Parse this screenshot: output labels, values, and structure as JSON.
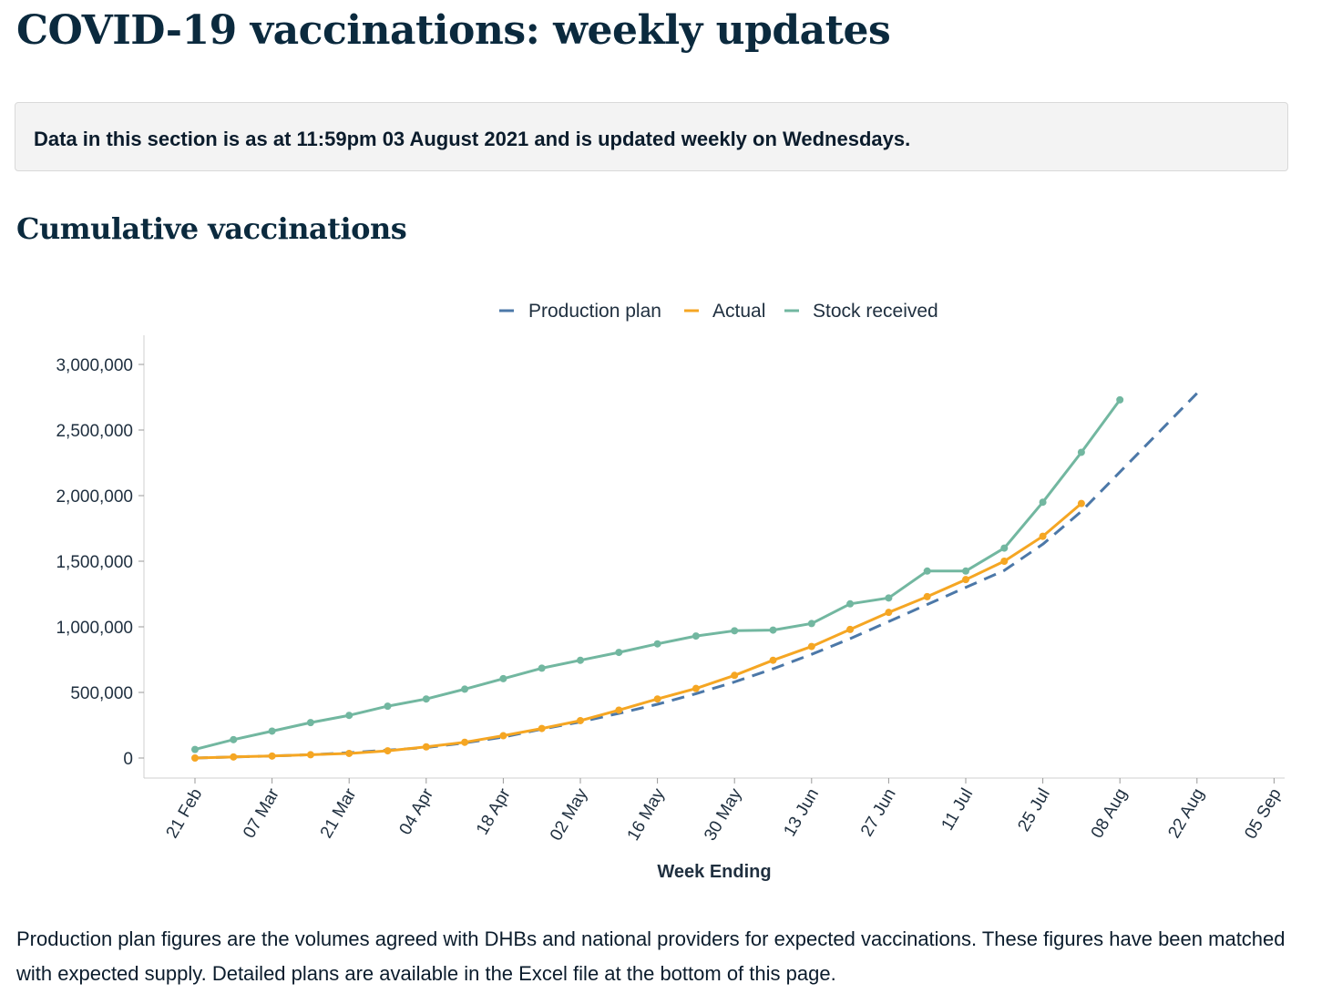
{
  "page": {
    "title": "COVID-19 vaccinations: weekly updates",
    "notice": "Data in this section is as at 11:59pm 03 August 2021 and is updated weekly on Wednesdays.",
    "section_title": "Cumulative vaccinations",
    "footnote": "Production plan figures are the volumes agreed with DHBs and national providers for expected vaccinations. These figures have been matched with expected supply. Detailed plans are available in the Excel file at the bottom of this page."
  },
  "chart_data": {
    "type": "line",
    "title": "Cumulative vaccinations",
    "xlabel": "Week Ending",
    "ylabel": "",
    "ylim": [
      0,
      3100000
    ],
    "yticks": [
      0,
      500000,
      1000000,
      1500000,
      2000000,
      2500000,
      3000000
    ],
    "ytick_labels": [
      "0",
      "500,000",
      "1,000,000",
      "1,500,000",
      "2,000,000",
      "2,500,000",
      "3,000,000"
    ],
    "xticks": [
      "21 Feb",
      "07 Mar",
      "21 Mar",
      "04 Apr",
      "18 Apr",
      "02 May",
      "16 May",
      "30 May",
      "13 Jun",
      "27 Jun",
      "11 Jul",
      "25 Jul",
      "08 Aug",
      "22 Aug",
      "05 Sep"
    ],
    "legend_position": "top",
    "series": [
      {
        "name": "Production plan",
        "color": "#4c78a8",
        "dashed": true,
        "markers": false,
        "x": [
          0,
          1,
          2,
          3,
          4,
          5,
          6,
          7,
          8,
          9,
          10,
          11,
          12,
          13,
          14,
          15,
          16,
          17,
          18,
          19,
          20,
          21,
          22,
          23,
          24,
          25,
          26
        ],
        "values": [
          0,
          8000,
          15000,
          25000,
          40000,
          60000,
          80000,
          115000,
          160000,
          220000,
          275000,
          340000,
          410000,
          490000,
          580000,
          680000,
          790000,
          910000,
          1040000,
          1170000,
          1300000,
          1430000,
          1630000,
          1880000,
          2180000,
          2480000,
          2780000
        ]
      },
      {
        "name": "Actual",
        "color": "#f5a623",
        "dashed": false,
        "markers": true,
        "x": [
          0,
          1,
          2,
          3,
          4,
          5,
          6,
          7,
          8,
          9,
          10,
          11,
          12,
          13,
          14,
          15,
          16,
          17,
          18,
          19,
          20,
          21,
          22,
          23
        ],
        "values": [
          0,
          8000,
          15000,
          25000,
          35000,
          55000,
          85000,
          120000,
          170000,
          225000,
          285000,
          365000,
          450000,
          530000,
          630000,
          745000,
          850000,
          980000,
          1110000,
          1230000,
          1360000,
          1500000,
          1690000,
          1940000
        ]
      },
      {
        "name": "Stock received",
        "color": "#72b7a0",
        "dashed": false,
        "markers": true,
        "x": [
          0,
          1,
          2,
          3,
          4,
          5,
          6,
          7,
          8,
          9,
          10,
          11,
          12,
          13,
          14,
          15,
          16,
          17,
          18,
          19,
          20,
          21,
          22,
          23,
          24
        ],
        "values": [
          65000,
          140000,
          205000,
          270000,
          325000,
          395000,
          450000,
          525000,
          605000,
          685000,
          745000,
          805000,
          870000,
          930000,
          970000,
          975000,
          1025000,
          1175000,
          1220000,
          1425000,
          1425000,
          1600000,
          1950000,
          2330000,
          2730000
        ]
      }
    ]
  }
}
